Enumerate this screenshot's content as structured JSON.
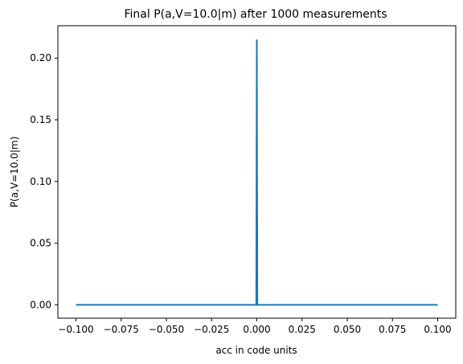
{
  "chart_data": {
    "type": "line",
    "title": "Final P(a,V=10.0|m) after 1000 measurements",
    "xlabel": "acc in code units",
    "ylabel": "P(a,V=10.0|m)",
    "xlim": [
      -0.11,
      0.11
    ],
    "ylim": [
      -0.0108,
      0.2262
    ],
    "xticks": [
      -0.1,
      -0.075,
      -0.05,
      -0.025,
      0.0,
      0.025,
      0.05,
      0.075,
      0.1
    ],
    "xtick_labels": [
      "−0.100",
      "−0.075",
      "−0.050",
      "−0.025",
      "0.000",
      "0.025",
      "0.050",
      "0.075",
      "0.100"
    ],
    "yticks": [
      0.0,
      0.05,
      0.1,
      0.15,
      0.2
    ],
    "ytick_labels": [
      "0.00",
      "0.05",
      "0.10",
      "0.15",
      "0.20"
    ],
    "grid": false,
    "series": [
      {
        "color": "#1f77b4",
        "x": [
          -0.1,
          -0.0003,
          0.0,
          0.0003,
          0.1
        ],
        "y": [
          0.0,
          0.0,
          0.215,
          0.0,
          0.0
        ]
      }
    ]
  }
}
